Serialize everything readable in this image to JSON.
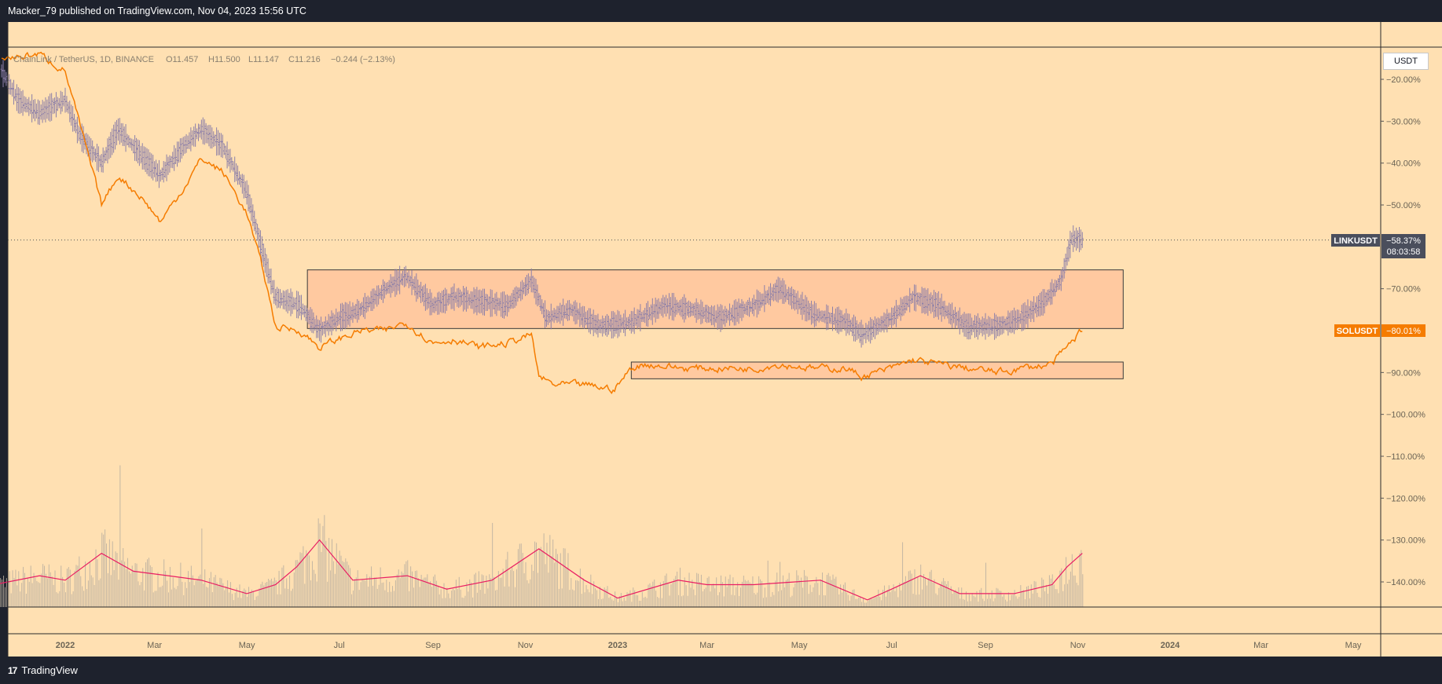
{
  "header": {
    "published_text": "Macker_79 published on TradingView.com, Nov 04, 2023 15:56 UTC"
  },
  "footer": {
    "logo_mark": "17",
    "logo_text": "TradingView"
  },
  "legend": {
    "symbol": "ChainLink / TetherUS, 1D, BINANCE",
    "open": "O11.457",
    "high": "H11.500",
    "low": "L11.147",
    "close": "C11.216",
    "change": "−0.244 (−2.13%)"
  },
  "price_axis": {
    "currency_label": "USDT",
    "ticks": [
      "−20.00%",
      "−30.00%",
      "−40.00%",
      "−50.00%",
      "−70.00%",
      "−90.00%",
      "−100.00%",
      "−110.00%",
      "−120.00%",
      "−130.00%",
      "−140.00%"
    ],
    "tick_values": [
      -20,
      -30,
      -40,
      -50,
      -70,
      -90,
      -100,
      -110,
      -120,
      -130,
      -140
    ]
  },
  "labels": {
    "link": {
      "symbol": "LINKUSDT",
      "value": "−58.37%",
      "countdown": "08:03:58",
      "color": "#4a4e5c"
    },
    "sol": {
      "symbol": "SOLUSDT",
      "value": "−80.01%",
      "color": "#f57c00"
    }
  },
  "time_axis": {
    "labels": [
      "2022",
      "Mar",
      "May",
      "Jul",
      "Sep",
      "Nov",
      "2023",
      "Mar",
      "May",
      "Jul",
      "Sep",
      "Nov",
      "2024",
      "Mar",
      "May"
    ],
    "label_dates": [
      "2022-01-01",
      "2022-03-01",
      "2022-05-01",
      "2022-07-01",
      "2022-09-01",
      "2022-11-01",
      "2023-01-01",
      "2023-03-01",
      "2023-05-01",
      "2023-07-01",
      "2023-09-01",
      "2023-11-01",
      "2024-01-01",
      "2024-03-01",
      "2024-05-01"
    ]
  },
  "colors": {
    "background": "#ffe0b2",
    "frame": "#1e222d",
    "link_bars": "#8c7fa8",
    "sol_line": "#f57c00",
    "box_fill": "#ffc9a0",
    "volume_bars": "#b9aea0",
    "volume_ma": "#e91e63"
  },
  "chart_data": {
    "type": "line",
    "title": "ChainLink / TetherUS, 1D, BINANCE",
    "y_unit": "% change",
    "ylim": [
      -145,
      -10
    ],
    "series": [
      {
        "name": "LINKUSDT",
        "style": "bars",
        "points": [
          [
            "2021-11-20",
            -18
          ],
          [
            "2021-12-01",
            -25
          ],
          [
            "2021-12-15",
            -28
          ],
          [
            "2022-01-01",
            -25
          ],
          [
            "2022-01-10",
            -33
          ],
          [
            "2022-01-25",
            -40
          ],
          [
            "2022-02-05",
            -32
          ],
          [
            "2022-02-20",
            -38
          ],
          [
            "2022-03-05",
            -43
          ],
          [
            "2022-03-20",
            -36
          ],
          [
            "2022-04-01",
            -32
          ],
          [
            "2022-04-15",
            -36
          ],
          [
            "2022-05-01",
            -47
          ],
          [
            "2022-05-12",
            -62
          ],
          [
            "2022-05-20",
            -72
          ],
          [
            "2022-06-05",
            -74
          ],
          [
            "2022-06-18",
            -80
          ],
          [
            "2022-07-01",
            -77
          ],
          [
            "2022-07-15",
            -75
          ],
          [
            "2022-08-01",
            -70
          ],
          [
            "2022-08-14",
            -67
          ],
          [
            "2022-09-01",
            -74
          ],
          [
            "2022-09-15",
            -72
          ],
          [
            "2022-10-01",
            -73
          ],
          [
            "2022-10-20",
            -74
          ],
          [
            "2022-11-05",
            -68
          ],
          [
            "2022-11-15",
            -77
          ],
          [
            "2022-12-01",
            -75
          ],
          [
            "2022-12-20",
            -79
          ],
          [
            "2023-01-10",
            -78
          ],
          [
            "2023-02-01",
            -74
          ],
          [
            "2023-02-20",
            -75
          ],
          [
            "2023-03-10",
            -77
          ],
          [
            "2023-04-01",
            -74
          ],
          [
            "2023-04-18",
            -70
          ],
          [
            "2023-05-10",
            -76
          ],
          [
            "2023-06-01",
            -78
          ],
          [
            "2023-06-12",
            -81
          ],
          [
            "2023-07-01",
            -77
          ],
          [
            "2023-07-15",
            -72
          ],
          [
            "2023-08-01",
            -74
          ],
          [
            "2023-08-20",
            -79
          ],
          [
            "2023-09-10",
            -79
          ],
          [
            "2023-09-25",
            -77
          ],
          [
            "2023-10-10",
            -73
          ],
          [
            "2023-10-21",
            -68
          ],
          [
            "2023-10-28",
            -58
          ],
          [
            "2023-11-04",
            -58.37
          ]
        ]
      },
      {
        "name": "SOLUSDT",
        "style": "line",
        "points": [
          [
            "2021-11-20",
            -15
          ],
          [
            "2021-12-15",
            -14
          ],
          [
            "2022-01-01",
            -18
          ],
          [
            "2022-01-10",
            -30
          ],
          [
            "2022-01-25",
            -50
          ],
          [
            "2022-02-05",
            -43
          ],
          [
            "2022-02-20",
            -48
          ],
          [
            "2022-03-05",
            -54
          ],
          [
            "2022-03-20",
            -46
          ],
          [
            "2022-04-01",
            -39
          ],
          [
            "2022-04-15",
            -42
          ],
          [
            "2022-05-01",
            -52
          ],
          [
            "2022-05-12",
            -66
          ],
          [
            "2022-05-20",
            -79
          ],
          [
            "2022-06-05",
            -80
          ],
          [
            "2022-06-18",
            -84
          ],
          [
            "2022-07-01",
            -82
          ],
          [
            "2022-07-15",
            -80
          ],
          [
            "2022-08-01",
            -80
          ],
          [
            "2022-08-14",
            -78
          ],
          [
            "2022-09-01",
            -83
          ],
          [
            "2022-09-15",
            -82
          ],
          [
            "2022-10-01",
            -84
          ],
          [
            "2022-10-20",
            -83
          ],
          [
            "2022-11-05",
            -81
          ],
          [
            "2022-11-10",
            -91
          ],
          [
            "2022-11-20",
            -93
          ],
          [
            "2022-12-10",
            -93
          ],
          [
            "2022-12-30",
            -94
          ],
          [
            "2023-01-10",
            -89
          ],
          [
            "2023-01-20",
            -88
          ],
          [
            "2023-02-15",
            -89
          ],
          [
            "2023-03-10",
            -89
          ],
          [
            "2023-04-01",
            -89
          ],
          [
            "2023-04-18",
            -88
          ],
          [
            "2023-05-10",
            -89
          ],
          [
            "2023-06-01",
            -89
          ],
          [
            "2023-06-12",
            -91
          ],
          [
            "2023-07-01",
            -89
          ],
          [
            "2023-07-15",
            -87
          ],
          [
            "2023-08-01",
            -88
          ],
          [
            "2023-08-20",
            -89
          ],
          [
            "2023-09-10",
            -90
          ],
          [
            "2023-09-25",
            -89
          ],
          [
            "2023-10-15",
            -88
          ],
          [
            "2023-10-25",
            -84
          ],
          [
            "2023-11-01",
            -81
          ],
          [
            "2023-11-04",
            -80.01
          ]
        ]
      }
    ],
    "rectangles": [
      {
        "x": [
          "2022-06-10",
          "2023-12-01"
        ],
        "y": [
          -79.5,
          -65.5
        ]
      },
      {
        "x": [
          "2023-01-10",
          "2023-12-01"
        ],
        "y": [
          -91.5,
          -87.5
        ]
      }
    ],
    "volume_ma_points": [
      [
        "2021-11-15",
        0.25
      ],
      [
        "2021-12-15",
        0.35
      ],
      [
        "2022-01-01",
        0.3
      ],
      [
        "2022-01-25",
        0.6
      ],
      [
        "2022-02-15",
        0.4
      ],
      [
        "2022-03-10",
        0.35
      ],
      [
        "2022-04-01",
        0.3
      ],
      [
        "2022-05-01",
        0.15
      ],
      [
        "2022-05-20",
        0.25
      ],
      [
        "2022-06-03",
        0.45
      ],
      [
        "2022-06-18",
        0.75
      ],
      [
        "2022-07-10",
        0.3
      ],
      [
        "2022-08-15",
        0.35
      ],
      [
        "2022-09-10",
        0.2
      ],
      [
        "2022-10-10",
        0.3
      ],
      [
        "2022-11-10",
        0.65
      ],
      [
        "2022-12-10",
        0.3
      ],
      [
        "2023-01-01",
        0.1
      ],
      [
        "2023-02-10",
        0.3
      ],
      [
        "2023-03-01",
        0.25
      ],
      [
        "2023-04-01",
        0.25
      ],
      [
        "2023-05-15",
        0.3
      ],
      [
        "2023-06-15",
        0.08
      ],
      [
        "2023-07-01",
        0.2
      ],
      [
        "2023-07-20",
        0.35
      ],
      [
        "2023-08-15",
        0.15
      ],
      [
        "2023-09-20",
        0.15
      ],
      [
        "2023-10-15",
        0.25
      ],
      [
        "2023-10-25",
        0.45
      ],
      [
        "2023-11-04",
        0.6
      ]
    ]
  }
}
